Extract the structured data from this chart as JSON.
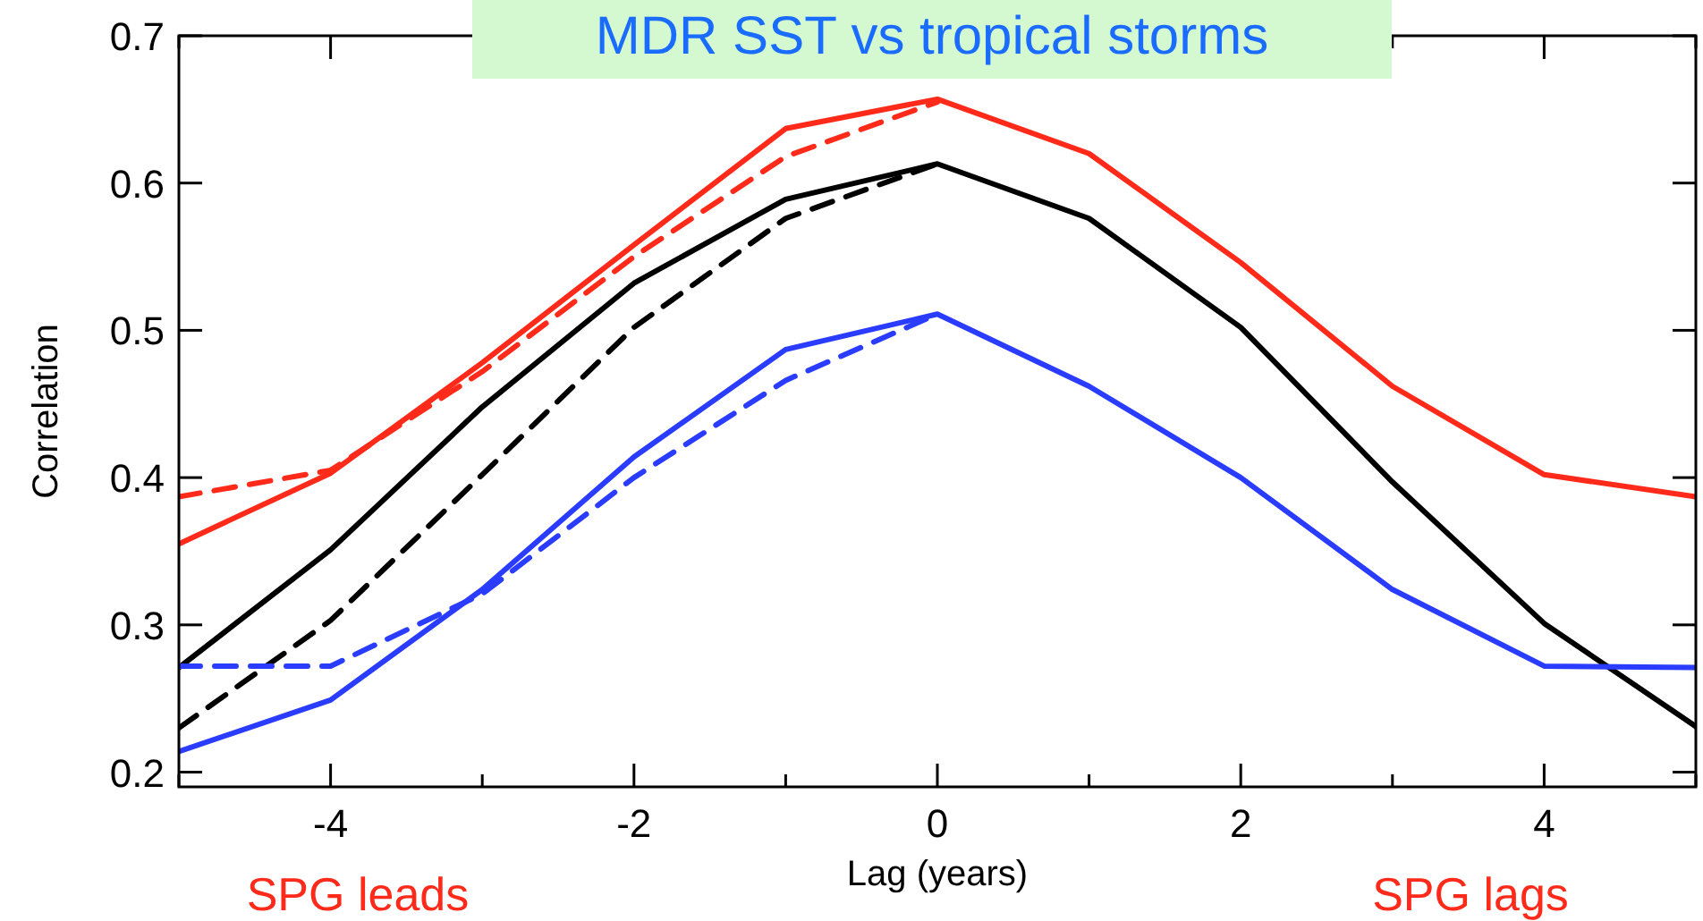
{
  "chart_data": {
    "type": "line",
    "title": "MDR SST vs tropical storms",
    "xlabel": "Lag (years)",
    "ylabel": "Correlation",
    "x": [
      -5,
      -4,
      -3,
      -2,
      -1,
      0,
      1,
      2,
      3,
      4,
      5
    ],
    "xlim": [
      -5,
      5
    ],
    "xticks": [
      {
        "value": -5,
        "label": null
      },
      -4,
      {
        "value": -3,
        "label": null
      },
      -2,
      {
        "value": -1,
        "label": null
      },
      0,
      {
        "value": 1,
        "label": null
      },
      2,
      {
        "value": 3,
        "label": null
      },
      4,
      {
        "value": 5,
        "label": null
      }
    ],
    "ylim": [
      0.19,
      0.7
    ],
    "yticks": [
      0.2,
      0.3,
      0.4,
      0.5,
      0.6,
      0.7
    ],
    "grid": false,
    "series": [
      {
        "color": "#ff2a1a",
        "line_style": "solid",
        "values": [
          0.355,
          0.403,
          0.478,
          0.558,
          0.637,
          0.657,
          0.62,
          0.546,
          0.462,
          0.402,
          0.387
        ]
      },
      {
        "color": "#ff2a1a",
        "line_style": "dashed",
        "values": [
          0.387,
          0.405,
          0.472,
          0.55,
          0.618,
          0.655,
          null,
          null,
          null,
          null,
          null
        ]
      },
      {
        "color": "#000000",
        "line_style": "solid",
        "values": [
          0.271,
          0.351,
          0.448,
          0.532,
          0.589,
          0.613,
          0.576,
          0.502,
          0.397,
          0.301,
          0.231
        ]
      },
      {
        "color": "#000000",
        "line_style": "dashed",
        "values": [
          0.23,
          0.303,
          0.402,
          0.502,
          0.576,
          0.613,
          null,
          null,
          null,
          null,
          null
        ]
      },
      {
        "color": "#2a3cff",
        "line_style": "solid",
        "values": [
          0.214,
          0.249,
          0.324,
          0.414,
          0.487,
          0.511,
          0.462,
          0.4,
          0.324,
          0.272,
          0.271
        ]
      },
      {
        "color": "#2a3cff",
        "line_style": "dashed",
        "values": [
          0.272,
          0.272,
          0.321,
          0.4,
          0.466,
          0.511,
          null,
          null,
          null,
          null,
          null
        ]
      }
    ],
    "annotations": [
      "SPG leads",
      "SPG lags"
    ]
  }
}
